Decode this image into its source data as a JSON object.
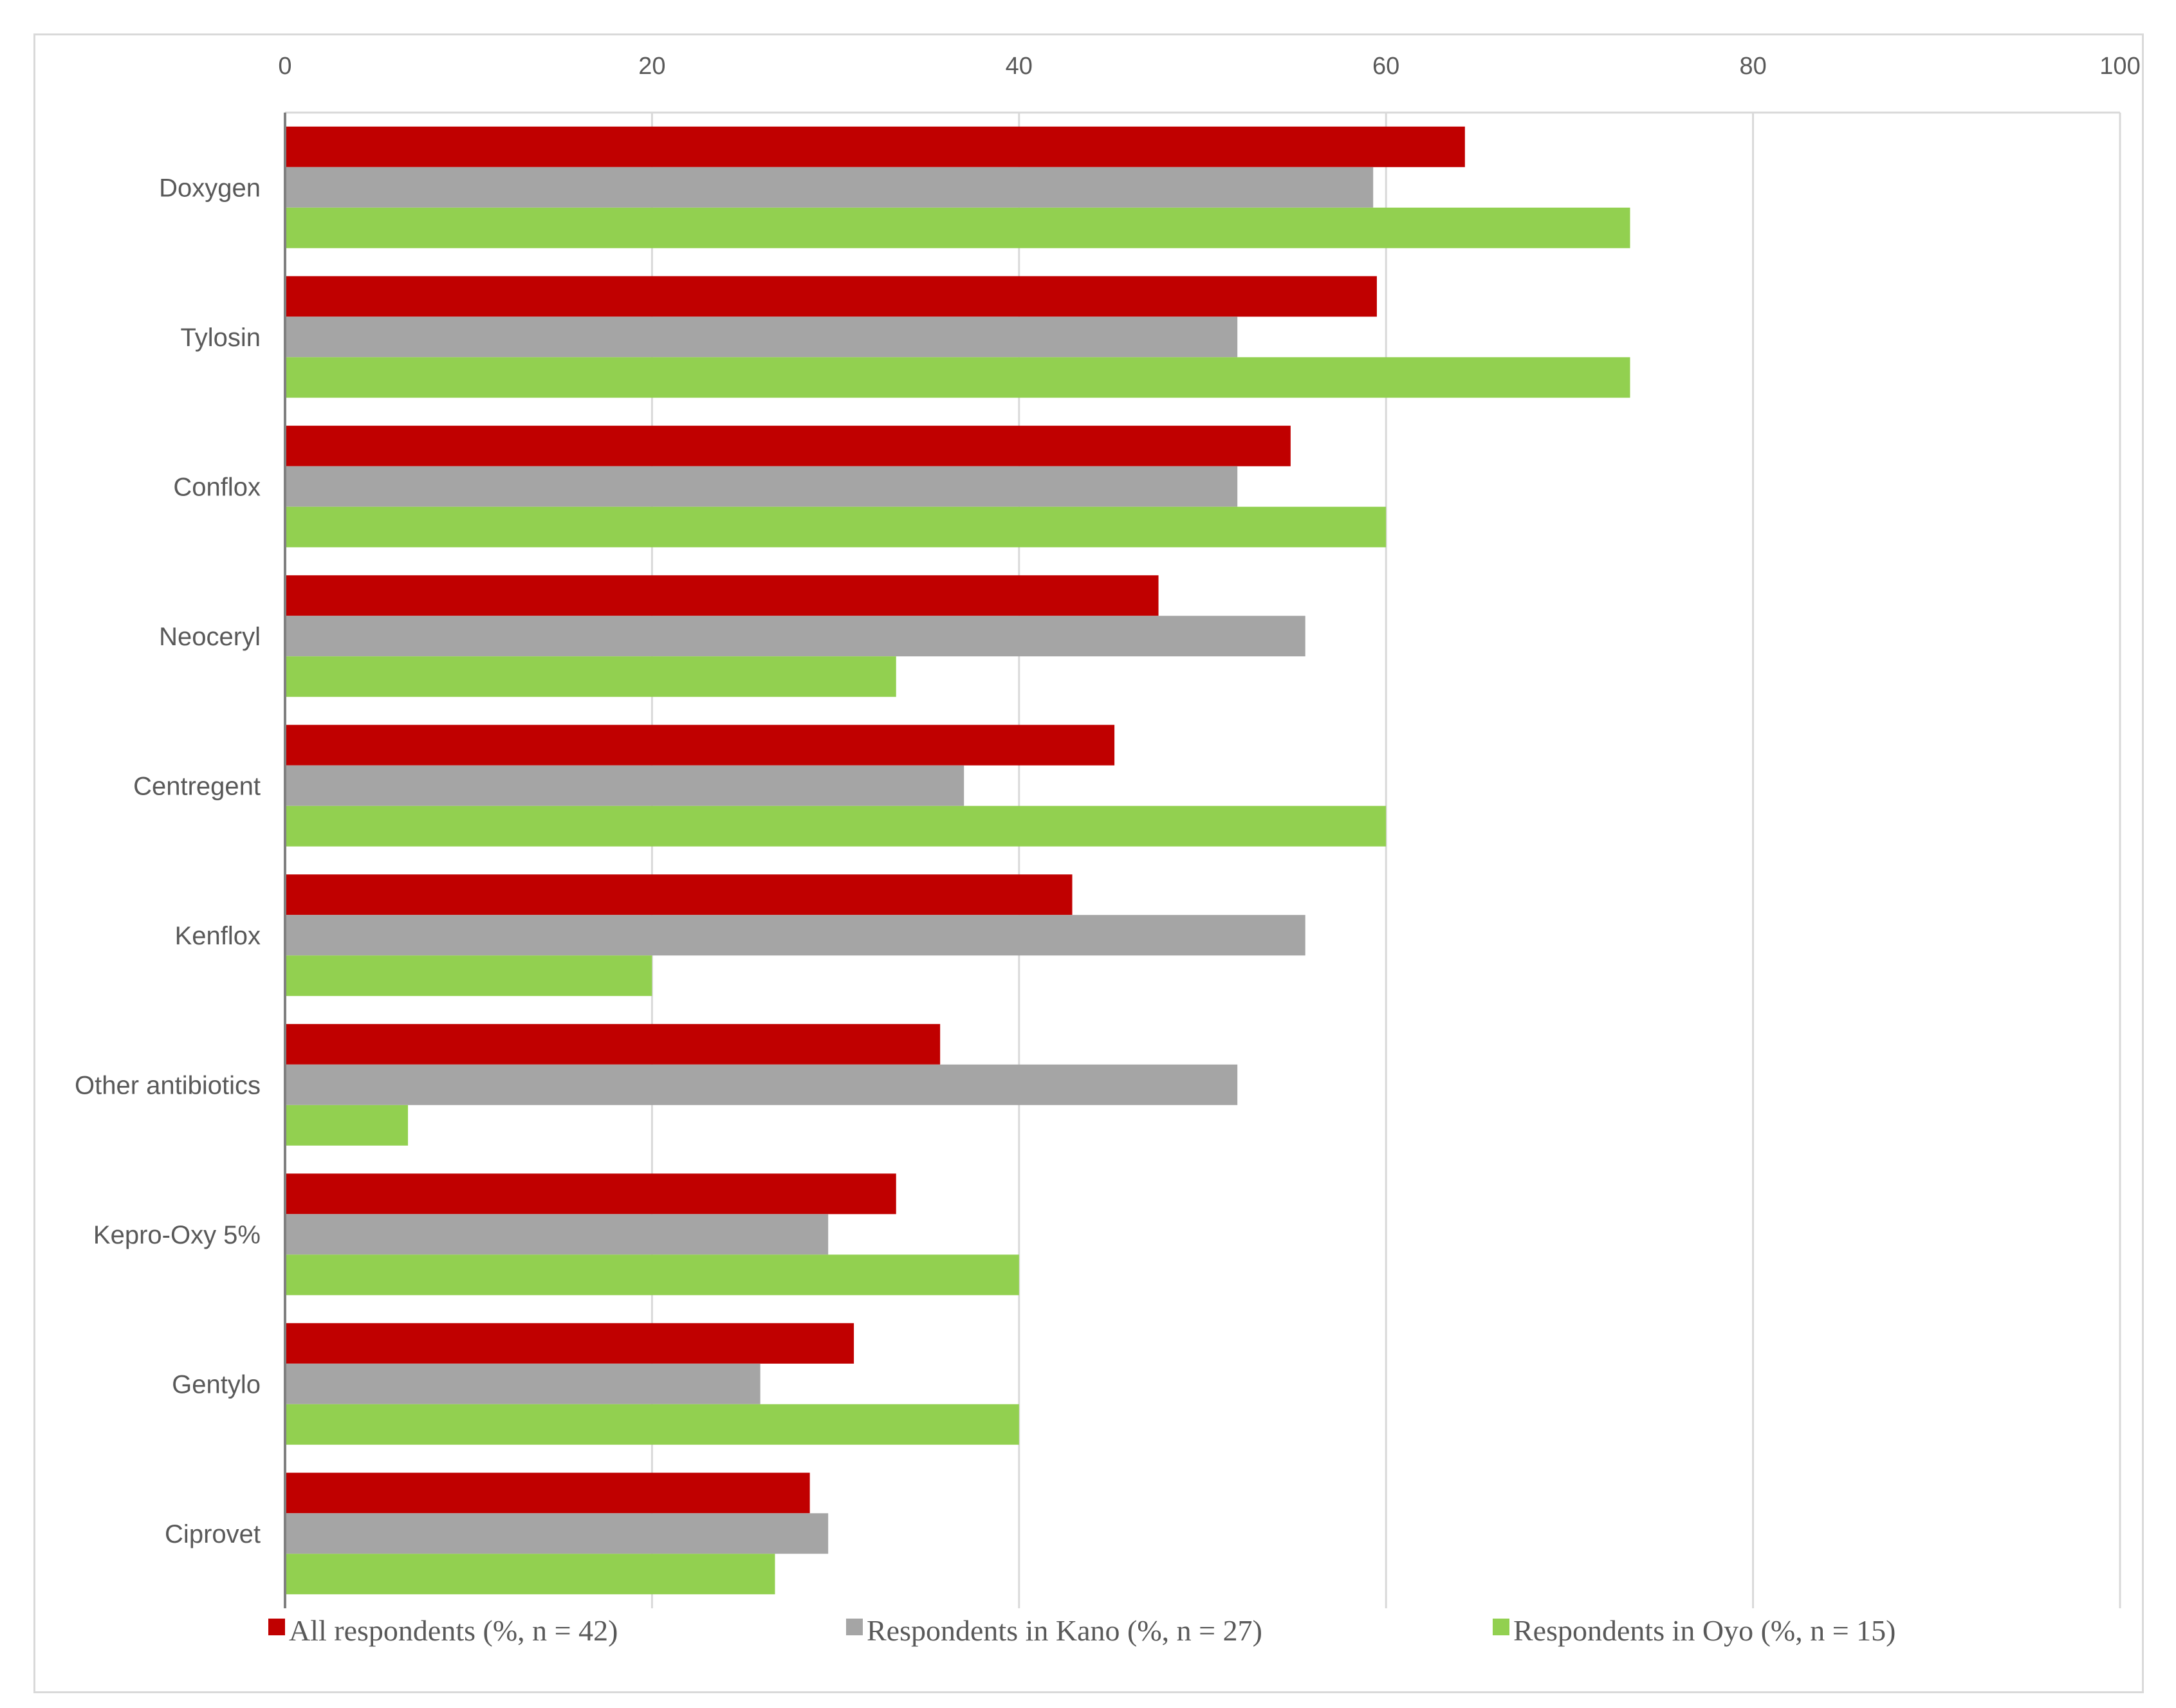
{
  "chart_data": {
    "type": "bar",
    "orientation": "horizontal",
    "title": "",
    "xlabel": "",
    "ylabel": "",
    "xlim": [
      0,
      100
    ],
    "x_ticks": [
      0,
      20,
      40,
      60,
      80,
      100
    ],
    "x_axis_position": "top",
    "grid": true,
    "legend_position": "bottom",
    "categories": [
      "Doxygen",
      "Tylosin",
      "Conflox",
      "Neoceryl",
      "Centregent",
      "Kenflox",
      "Other antibiotics",
      "Kepro-Oxy 5%",
      "Gentylo",
      "Ciprovet"
    ],
    "series": [
      {
        "name": "All respondents (%, n = 42)",
        "color": "#c00000",
        "values": [
          64.3,
          59.5,
          54.8,
          47.6,
          45.2,
          42.9,
          35.7,
          33.3,
          31.0,
          28.6
        ]
      },
      {
        "name": "Respondents in Kano (%, n = 27)",
        "color": "#a5a5a5",
        "values": [
          59.3,
          51.9,
          51.9,
          55.6,
          37.0,
          55.6,
          51.9,
          29.6,
          25.9,
          29.6
        ]
      },
      {
        "name": "Respondents in Oyo (%, n = 15)",
        "color": "#92d050",
        "values": [
          73.3,
          73.3,
          60.0,
          33.3,
          60.0,
          20.0,
          6.7,
          40.0,
          40.0,
          26.7
        ]
      }
    ]
  },
  "colors": {
    "grid": "#d9d9d9",
    "axis": "#808080",
    "text": "#595959",
    "frame": "#d9d9d9"
  }
}
